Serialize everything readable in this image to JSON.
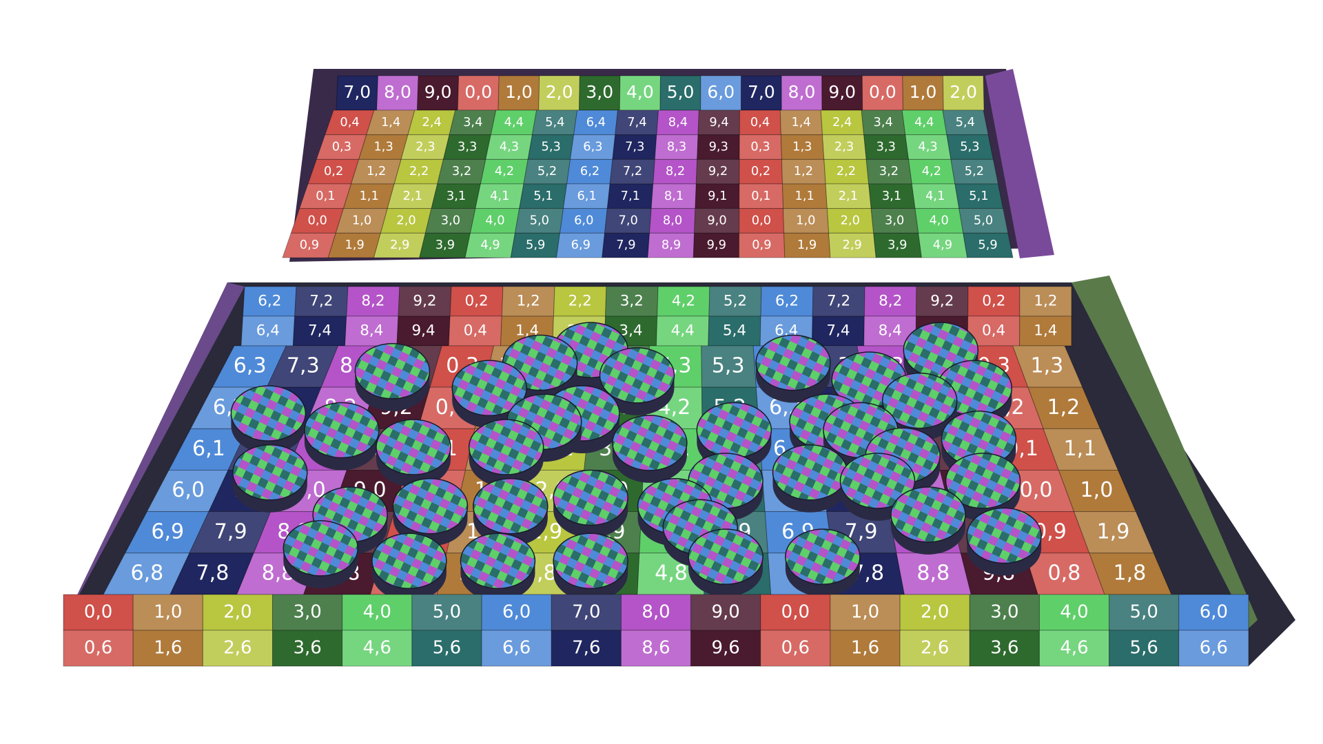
{
  "back_box": {
    "wall": [
      [
        "7,0",
        "8,0",
        "9,0",
        "0,0",
        "1,0",
        "2,0",
        "3,0",
        "4,0",
        "5,0",
        "6,0",
        "7,0",
        "8,0",
        "9,0",
        "0,0",
        "1,0",
        "2,0"
      ]
    ],
    "floor": [
      [
        "0,4",
        "1,4",
        "2,4",
        "3,4",
        "4,4",
        "5,4",
        "6,4",
        "7,4",
        "8,4",
        "9,4",
        "0,4",
        "1,4",
        "2,4",
        "3,4",
        "4,4",
        "5,4"
      ],
      [
        "0,3",
        "1,3",
        "2,3",
        "3,3",
        "4,3",
        "5,3",
        "6,3",
        "7,3",
        "8,3",
        "9,3",
        "0,3",
        "1,3",
        "2,3",
        "3,3",
        "4,3",
        "5,3"
      ],
      [
        "0,2",
        "1,2",
        "2,2",
        "3,2",
        "4,2",
        "5,2",
        "6,2",
        "7,2",
        "8,2",
        "9,2",
        "0,2",
        "1,2",
        "2,2",
        "3,2",
        "4,2",
        "5,2"
      ],
      [
        "0,1",
        "1,1",
        "2,1",
        "3,1",
        "4,1",
        "5,1",
        "6,1",
        "7,1",
        "8,1",
        "9,1",
        "0,1",
        "1,1",
        "2,1",
        "3,1",
        "4,1",
        "5,1"
      ],
      [
        "0,0",
        "1,0",
        "2,0",
        "3,0",
        "4,0",
        "5,0",
        "6,0",
        "7,0",
        "8,0",
        "9,0",
        "0,0",
        "1,0",
        "2,0",
        "3,0",
        "4,0",
        "5,0"
      ],
      [
        "0,9",
        "1,9",
        "2,9",
        "3,9",
        "4,9",
        "5,9",
        "6,9",
        "7,9",
        "8,9",
        "9,9",
        "0,9",
        "1,9",
        "2,9",
        "3,9",
        "4,9",
        "5,9"
      ]
    ]
  },
  "front_box": {
    "wall": [
      [
        "6,2",
        "7,2",
        "8,2",
        "9,2",
        "0,2",
        "1,2",
        "2,2",
        "3,2",
        "4,2",
        "5,2",
        "6,2",
        "7,2",
        "8,2",
        "9,2",
        "0,2",
        "1,2"
      ],
      [
        "6,4",
        "7,4",
        "8,4",
        "9,4",
        "0,4",
        "1,4",
        "2,4",
        "3,4",
        "4,4",
        "5,4",
        "6,4",
        "7,4",
        "8,4",
        "9,4",
        "0,4",
        "1,4"
      ]
    ],
    "floor": [
      [
        "6,3",
        "7,3",
        "8,3",
        "9,3",
        "0,3",
        "1,3",
        "2,3",
        "3,3",
        "4,3",
        "5,3",
        "6,3",
        "7,3",
        "8,3",
        "9,3",
        "0,3",
        "1,3"
      ],
      [
        "6,2",
        "7,2",
        "8,2",
        "9,2",
        "0,2",
        "1,2",
        "2,2",
        "3,2",
        "4,2",
        "5,2",
        "6,2",
        "7,2",
        "8,2",
        "9,2",
        "0,2",
        "1,2"
      ],
      [
        "6,1",
        "7,1",
        "8,1",
        "9,1",
        "0,1",
        "1,1",
        "2,1",
        "3,1",
        "4,1",
        "5,1",
        "6,1",
        "7,1",
        "8,1",
        "9,1",
        "0,1",
        "1,1"
      ],
      [
        "6,0",
        "7,0",
        "8,0",
        "9,0",
        "0,0",
        "1,0",
        "2,0",
        "3,0",
        "4,0",
        "5,0",
        "6,0",
        "7,0",
        "8,0",
        "9,0",
        "0,0",
        "1,0"
      ],
      [
        "6,9",
        "7,9",
        "8,9",
        "9,9",
        "0,9",
        "1,9",
        "2,9",
        "3,9",
        "4,9",
        "5,9",
        "6,9",
        "7,9",
        "8,9",
        "9,9",
        "0,9",
        "1,9"
      ],
      [
        "6,8",
        "7,8",
        "8,8",
        "9,8",
        "0,8",
        "1,8",
        "2,8",
        "3,8",
        "4,8",
        "5,8",
        "6,8",
        "7,8",
        "8,8",
        "9,8",
        "0,8",
        "1,8"
      ]
    ],
    "rim": [
      [
        "0,0",
        "1,0",
        "2,0",
        "3,0",
        "4,0",
        "5,0",
        "6,0",
        "7,0",
        "8,0",
        "9,0",
        "0,0",
        "1,0",
        "2,0",
        "3,0",
        "4,0",
        "5,0",
        "6,0"
      ],
      [
        "0,6",
        "1,6",
        "2,6",
        "3,6",
        "4,6",
        "5,6",
        "6,6",
        "7,6",
        "8,6",
        "9,6",
        "0,6",
        "1,6",
        "2,6",
        "3,6",
        "4,6",
        "5,6",
        "6,6"
      ]
    ]
  }
}
